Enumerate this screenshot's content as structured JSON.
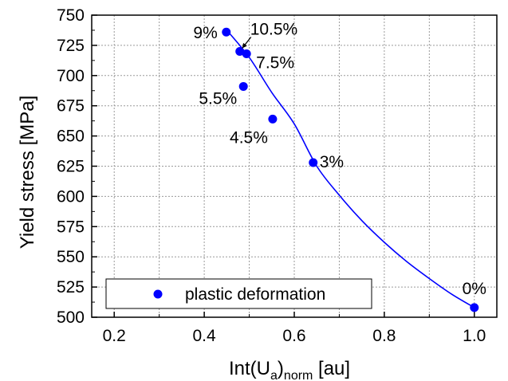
{
  "chart_data": {
    "type": "scatter",
    "xlabel_main": "Int(U",
    "xlabel_sub1": "a",
    "xlabel_sub2": "norm",
    "xlabel_unit": " [au]",
    "ylabel": "Yield stress [MPa]",
    "xlim": [
      0.15,
      1.05
    ],
    "ylim": [
      500,
      750
    ],
    "xticks": [
      0.2,
      0.4,
      0.6,
      0.8,
      1.0
    ],
    "xtick_labels": [
      "0.2",
      "0.4",
      "0.6",
      "0.8",
      "1.0"
    ],
    "yticks": [
      500,
      525,
      550,
      575,
      600,
      625,
      650,
      675,
      700,
      725,
      750
    ],
    "ytick_labels": [
      "500",
      "525",
      "550",
      "575",
      "600",
      "625",
      "650",
      "675",
      "700",
      "725",
      "750"
    ],
    "grid": true,
    "legend_position": "bottom-left",
    "series": [
      {
        "name": "plastic deformation",
        "color": "#0000ff",
        "points": [
          {
            "x": 0.449,
            "y": 736,
            "label": "9%"
          },
          {
            "x": 0.479,
            "y": 720,
            "label": ""
          },
          {
            "x": 0.494,
            "y": 718,
            "label": "7.5%"
          },
          {
            "x": 0.487,
            "y": 691,
            "label": "5.5%"
          },
          {
            "x": 0.552,
            "y": 664,
            "label": "4.5%"
          },
          {
            "x": 0.642,
            "y": 628,
            "label": "3%"
          },
          {
            "x": 1.0,
            "y": 508,
            "label": "0%"
          }
        ]
      }
    ],
    "annotations": [
      {
        "text": "10.5%",
        "target_x": 0.479,
        "target_y": 720,
        "arrow": true
      }
    ],
    "fit_curve": {
      "color": "#0000ff",
      "x": [
        0.449,
        0.5,
        0.55,
        0.6,
        0.65,
        0.7,
        0.75,
        0.8,
        0.85,
        0.9,
        0.95,
        1.0
      ],
      "y": [
        738,
        715,
        686,
        660,
        625,
        601,
        580,
        562,
        546,
        532,
        519,
        508
      ]
    }
  }
}
